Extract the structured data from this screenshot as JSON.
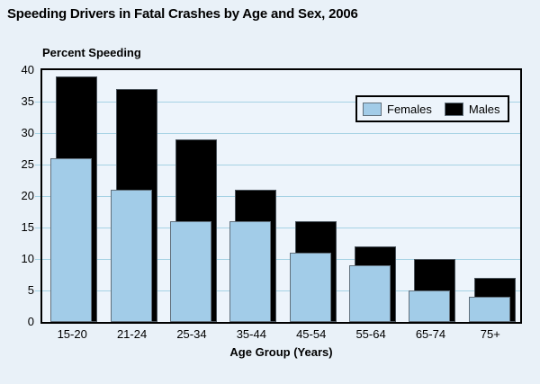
{
  "chart_data": {
    "type": "bar",
    "variant": "grouped-overlapping",
    "title": "Speeding Drivers in Fatal Crashes by Age and Sex, 2006",
    "y_axis_title": "Percent Speeding",
    "x_axis_title": "Age Group (Years)",
    "categories": [
      "15-20",
      "21-24",
      "25-34",
      "35-44",
      "45-54",
      "55-64",
      "65-74",
      "75+"
    ],
    "series": [
      {
        "name": "Males",
        "color": "#000000",
        "values": [
          39,
          37,
          29,
          21,
          16,
          12,
          10,
          7
        ]
      },
      {
        "name": "Females",
        "color": "#a2cce8",
        "values": [
          26,
          21,
          16,
          16,
          11,
          9,
          5,
          4
        ]
      }
    ],
    "ylim": [
      0,
      40
    ],
    "ytick_step": 5,
    "grid": true,
    "legend_position": "top-right"
  },
  "legend": {
    "items": [
      {
        "label": "Females",
        "color": "#a2cce8"
      },
      {
        "label": "Males",
        "color": "#000000"
      }
    ]
  },
  "colors": {
    "page_bg": "#e9f1f8",
    "plot_bg": "#edf4fb",
    "gridline": "#a6d2e4",
    "axis": "#000000",
    "females_bar": "#a2cce8",
    "males_bar": "#000000"
  }
}
